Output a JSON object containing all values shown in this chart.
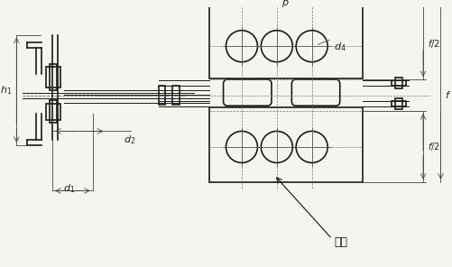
{
  "bg_color": "#f5f5f0",
  "line_color": "#1a1a1a",
  "dim_color": "#333333",
  "title": "",
  "annotation": "见注",
  "labels": [
    "d₁",
    "d₂",
    "h₁",
    "d₄",
    "p",
    "f/2",
    "f/2",
    "f"
  ]
}
